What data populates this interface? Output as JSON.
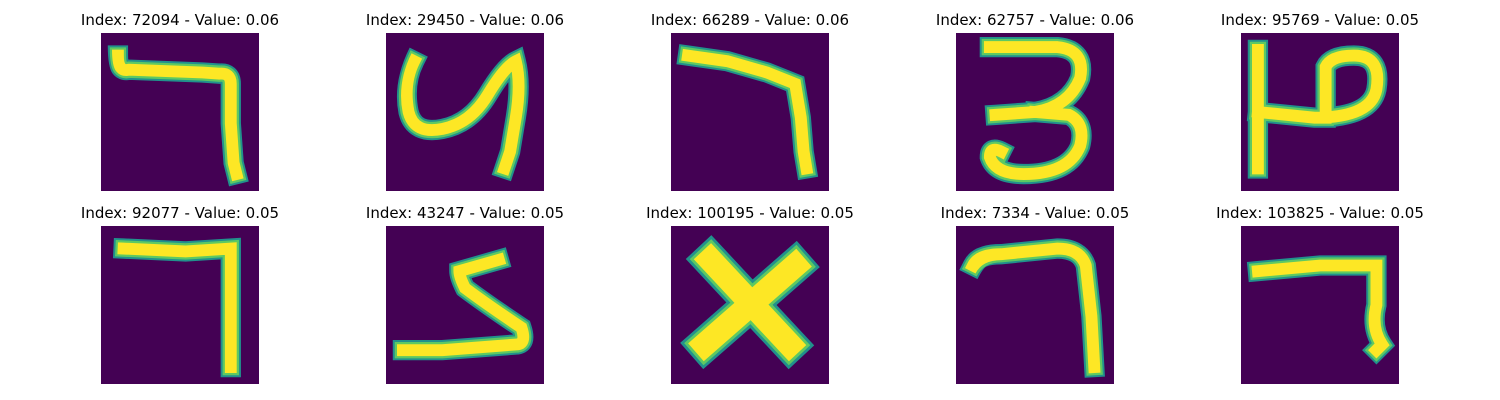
{
  "colors": {
    "background": "#440154",
    "stroke_core": "#fde725",
    "stroke_edge": "#21918c",
    "stroke_mid": "#5ec962"
  },
  "panels": [
    {
      "title": "Index: 72094 - Value: 0.06",
      "glyph": "hooked-seven"
    },
    {
      "title": "Index: 29450 - Value: 0.06",
      "glyph": "u-shape-four"
    },
    {
      "title": "Index: 66289 - Value: 0.06",
      "glyph": "slanted-seven"
    },
    {
      "title": "Index: 62757 - Value: 0.06",
      "glyph": "three"
    },
    {
      "title": "Index: 95769 - Value: 0.05",
      "glyph": "rotated-p"
    },
    {
      "title": "Index: 92077 - Value: 0.05",
      "glyph": "block-seven"
    },
    {
      "title": "Index: 43247 - Value: 0.05",
      "glyph": "reverse-s"
    },
    {
      "title": "Index: 100195 - Value: 0.05",
      "glyph": "x-shape"
    },
    {
      "title": "Index: 7334 - Value: 0.05",
      "glyph": "curved-seven"
    },
    {
      "title": "Index: 103825 - Value: 0.05",
      "glyph": "short-seven"
    }
  ]
}
